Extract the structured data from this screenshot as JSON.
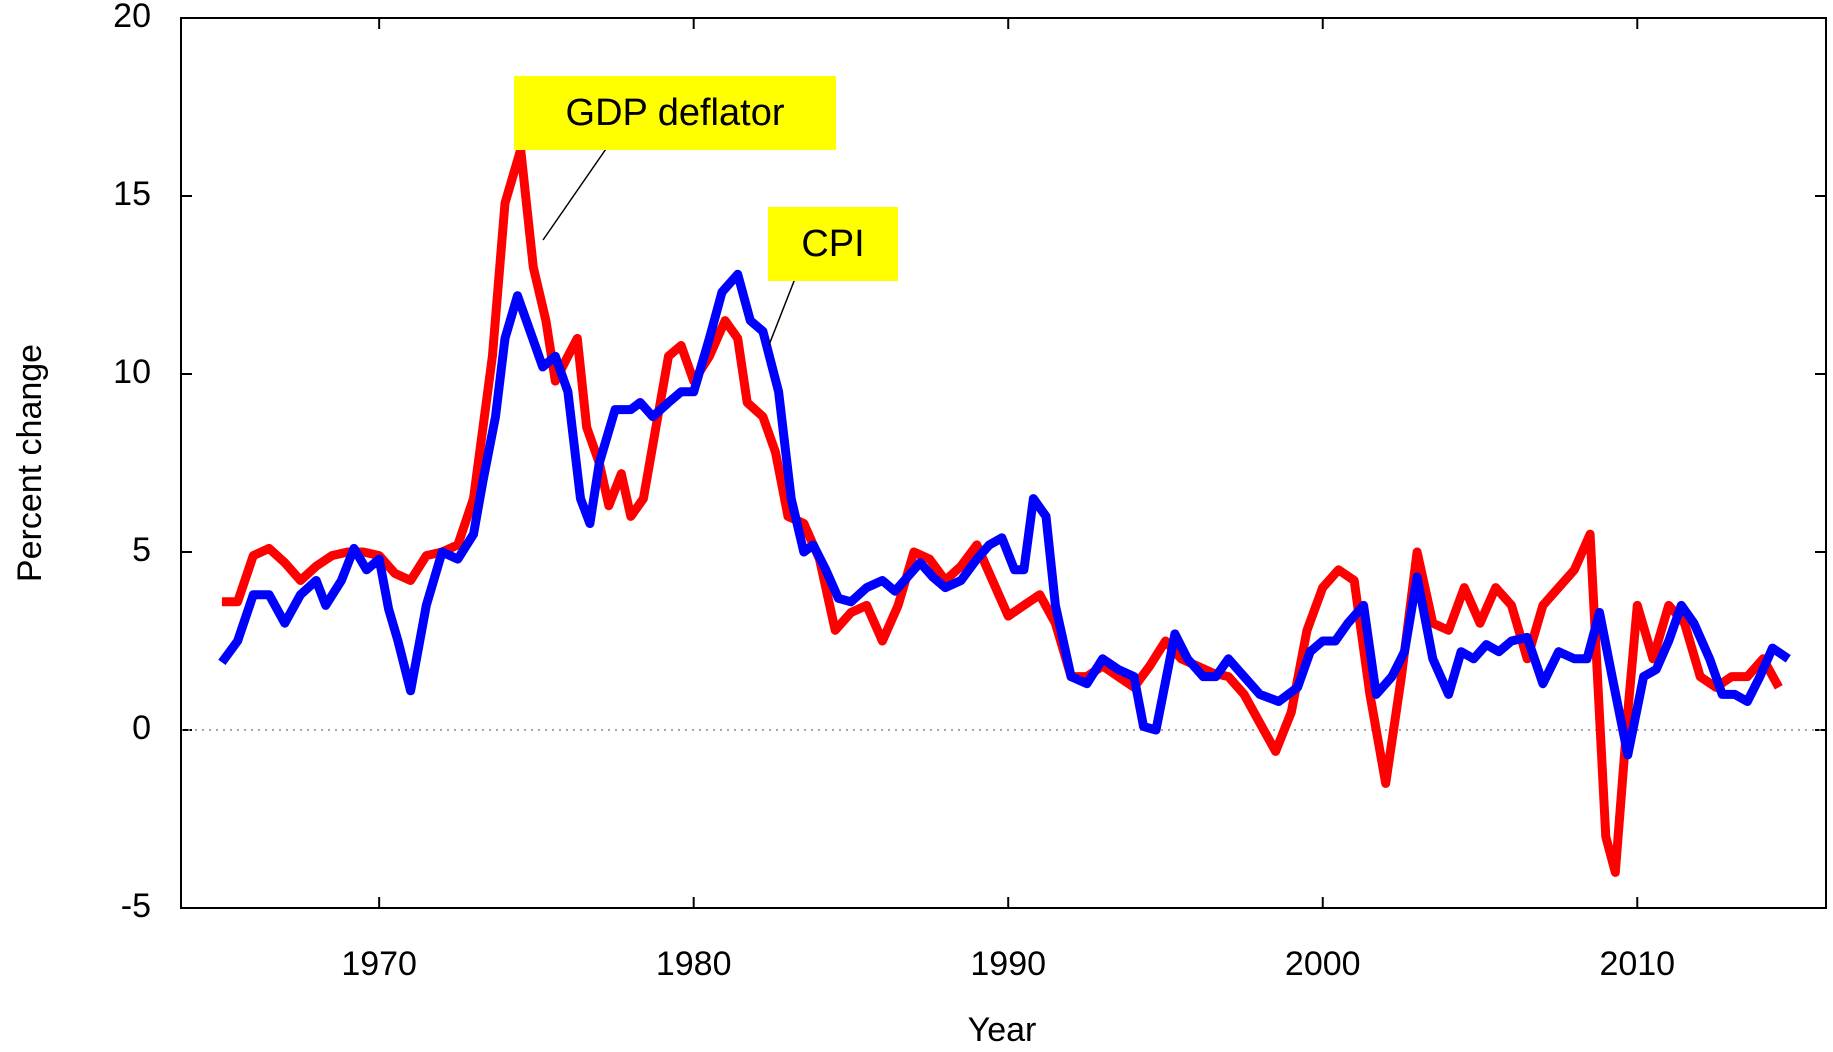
{
  "chart_data": {
    "type": "line",
    "xlabel": "Year",
    "ylabel": "Percent change",
    "xlim": [
      1963.7,
      2016
    ],
    "ylim": [
      -5,
      20
    ],
    "xticks": [
      1970,
      1980,
      1990,
      2000,
      2010
    ],
    "yticks": [
      -5,
      0,
      5,
      10,
      15,
      20
    ],
    "zero_line": true,
    "annotations": [
      "GDP deflator",
      "CPI"
    ],
    "series": [
      {
        "name": "GDP deflator",
        "color": "#ff0000",
        "x": [
          1965,
          1965.5,
          1966,
          1966.5,
          1967,
          1967.5,
          1968,
          1968.5,
          1969,
          1969.5,
          1970,
          1970.5,
          1971,
          1971.5,
          1972,
          1972.5,
          1973,
          1973.3,
          1973.6,
          1974,
          1974.5,
          1974.9,
          1975.3,
          1975.6,
          1976,
          1976.3,
          1976.6,
          1977,
          1977.3,
          1977.7,
          1978,
          1978.4,
          1978.8,
          1979.2,
          1979.6,
          1980,
          1980.5,
          1981,
          1981.4,
          1981.7,
          1982.2,
          1982.6,
          1983,
          1983.5,
          1984,
          1984.5,
          1985,
          1985.5,
          1986,
          1986.5,
          1987,
          1987.5,
          1988,
          1988.5,
          1989,
          1989.5,
          1990,
          1990.5,
          1991,
          1991.5,
          1992,
          1992.5,
          1993,
          1993.5,
          1994,
          1994.5,
          1995,
          1995.5,
          1996,
          1996.5,
          1997,
          1997.5,
          1998,
          1998.5,
          1999,
          1999.5,
          2000,
          2000.5,
          2001,
          2001.5,
          2002,
          2002.5,
          2003,
          2003.5,
          2004,
          2004.5,
          2005,
          2005.5,
          2006,
          2006.5,
          2007,
          2007.5,
          2008,
          2008.5,
          2009,
          2009.3,
          2009.7,
          2010,
          2010.5,
          2011,
          2011.5,
          2012,
          2012.5,
          2013,
          2013.5,
          2014,
          2014.5
        ],
        "values": [
          3.6,
          3.6,
          4.9,
          5.1,
          4.7,
          4.2,
          4.6,
          4.9,
          5.0,
          5.0,
          4.9,
          4.4,
          4.2,
          4.9,
          5.0,
          5.2,
          6.5,
          8.5,
          10.5,
          14.8,
          16.3,
          13.0,
          11.5,
          9.8,
          10.5,
          11.0,
          8.5,
          7.5,
          6.3,
          7.2,
          6.0,
          6.5,
          8.5,
          10.5,
          10.8,
          9.8,
          10.5,
          11.5,
          11.0,
          9.2,
          8.8,
          7.8,
          6.0,
          5.8,
          4.8,
          2.8,
          3.3,
          3.5,
          2.5,
          3.5,
          5.0,
          4.8,
          4.2,
          4.6,
          5.2,
          4.2,
          3.2,
          3.5,
          3.8,
          3.0,
          1.5,
          1.5,
          1.8,
          1.5,
          1.2,
          1.8,
          2.5,
          2.0,
          1.8,
          1.6,
          1.5,
          1.0,
          0.2,
          -0.6,
          0.5,
          2.8,
          4.0,
          4.5,
          4.2,
          1.0,
          -1.5,
          1.5,
          5.0,
          3.0,
          2.8,
          4.0,
          3.0,
          4.0,
          3.5,
          2.0,
          3.5,
          4.0,
          4.5,
          5.5,
          -3.0,
          -4.0,
          0.5,
          3.5,
          2.0,
          3.5,
          3.0,
          1.5,
          1.2,
          1.5,
          1.5,
          2.0,
          1.2
        ]
      },
      {
        "name": "CPI",
        "color": "#0000ff",
        "x": [
          1965,
          1965.5,
          1966,
          1966.5,
          1967,
          1967.5,
          1968,
          1968.3,
          1968.8,
          1969.2,
          1969.6,
          1970,
          1970.3,
          1970.6,
          1971,
          1971.5,
          1972,
          1972.5,
          1973,
          1973.3,
          1973.7,
          1974,
          1974.4,
          1974.8,
          1975.2,
          1975.6,
          1976,
          1976.4,
          1976.7,
          1977,
          1977.5,
          1978,
          1978.3,
          1978.7,
          1979.2,
          1979.6,
          1980,
          1980.5,
          1980.9,
          1981.4,
          1981.8,
          1982.2,
          1982.7,
          1983.1,
          1983.5,
          1983.8,
          1984.2,
          1984.6,
          1985,
          1985.5,
          1986,
          1986.4,
          1986.8,
          1987.2,
          1987.6,
          1988,
          1988.5,
          1989,
          1989.4,
          1989.8,
          1990.2,
          1990.5,
          1990.8,
          1991.2,
          1991.5,
          1992,
          1992.5,
          1993,
          1993.5,
          1994,
          1994.3,
          1994.7,
          1995.3,
          1995.7,
          1996.2,
          1996.6,
          1997,
          1997.5,
          1998,
          1998.6,
          1999.2,
          1999.6,
          2000,
          2000.4,
          2000.8,
          2001.3,
          2001.7,
          2002.2,
          2002.6,
          2003,
          2003.5,
          2004,
          2004.4,
          2004.8,
          2005.2,
          2005.6,
          2006,
          2006.5,
          2007,
          2007.5,
          2008,
          2008.4,
          2008.8,
          2009.2,
          2009.7,
          2010.2,
          2010.6,
          2011,
          2011.4,
          2011.8,
          2012.3,
          2012.7,
          2013.1,
          2013.5,
          2013.9,
          2014.3,
          2014.8
        ],
        "values": [
          1.9,
          2.5,
          3.8,
          3.8,
          3.0,
          3.8,
          4.2,
          3.5,
          4.2,
          5.1,
          4.5,
          4.8,
          3.4,
          2.5,
          1.1,
          3.5,
          5.0,
          4.8,
          5.5,
          7.0,
          8.8,
          11.0,
          12.2,
          11.2,
          10.2,
          10.5,
          9.5,
          6.5,
          5.8,
          7.5,
          9.0,
          9.0,
          9.2,
          8.8,
          9.2,
          9.5,
          9.5,
          11.0,
          12.3,
          12.8,
          11.5,
          11.2,
          9.5,
          6.5,
          5.0,
          5.2,
          4.5,
          3.7,
          3.6,
          4.0,
          4.2,
          3.9,
          4.3,
          4.7,
          4.3,
          4.0,
          4.2,
          4.8,
          5.2,
          5.4,
          4.5,
          4.5,
          6.5,
          6.0,
          3.5,
          1.5,
          1.3,
          2.0,
          1.7,
          1.5,
          0.1,
          0.0,
          2.7,
          2.0,
          1.5,
          1.5,
          2.0,
          1.5,
          1.0,
          0.8,
          1.2,
          2.2,
          2.5,
          2.5,
          3.0,
          3.5,
          1.0,
          1.5,
          2.2,
          4.3,
          2.0,
          1.0,
          2.2,
          2.0,
          2.4,
          2.2,
          2.5,
          2.6,
          1.3,
          2.2,
          2.0,
          2.0,
          3.3,
          1.5,
          -0.7,
          1.5,
          1.7,
          2.5,
          3.5,
          3.0,
          2.0,
          1.0,
          1.0,
          0.8,
          1.5,
          2.3,
          2.0
        ]
      }
    ]
  }
}
